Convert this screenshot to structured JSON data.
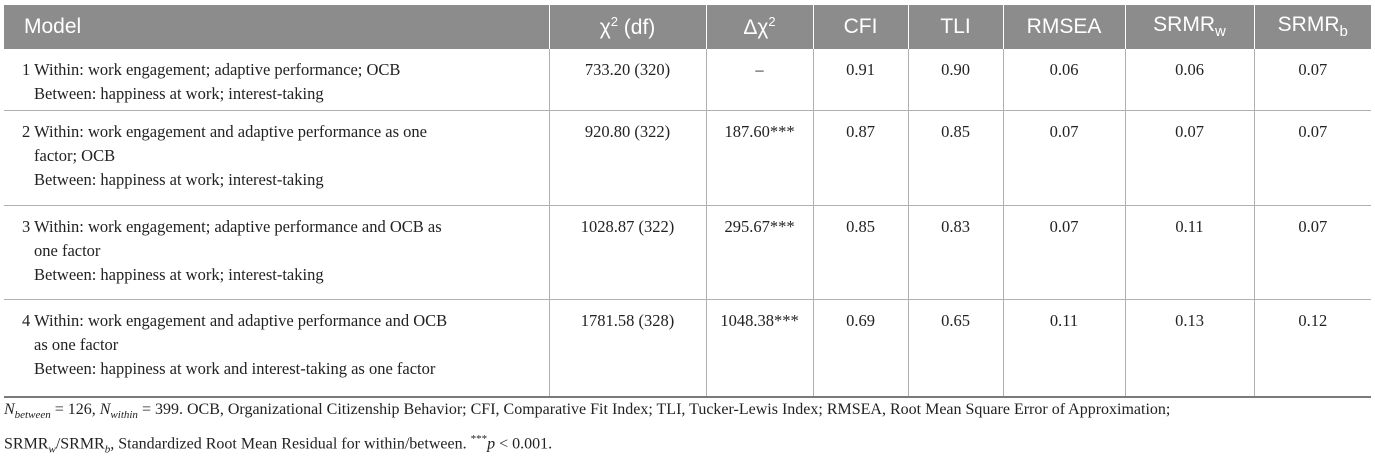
{
  "table": {
    "headers": {
      "model": "Model",
      "chi2_symbol": "χ",
      "chi2_sup": "2",
      "chi2_rest": " (df)",
      "dchi2_symbol": "Δχ",
      "dchi2_sup": "2",
      "cfi": "CFI",
      "tli": "TLI",
      "rmsea": "RMSEA",
      "srmrw_base": "SRMR",
      "srmrw_sub": "w",
      "srmrb_base": "SRMR",
      "srmrb_sub": "b"
    },
    "rows": [
      {
        "model_line1": "1 Within: work engagement; adaptive performance; OCB",
        "model_line2": "",
        "model_line3": "Between: happiness at work; interest-taking",
        "chi2": "733.20 (320)",
        "dchi2": "–",
        "cfi": "0.91",
        "tli": "0.90",
        "rmsea": "0.06",
        "srmrw": "0.06",
        "srmrb": "0.07"
      },
      {
        "model_line1": "2 Within: work engagement and adaptive performance as one",
        "model_line2": "factor; OCB",
        "model_line3": "Between: happiness at work; interest-taking",
        "chi2": "920.80 (322)",
        "dchi2": "187.60***",
        "cfi": "0.87",
        "tli": "0.85",
        "rmsea": "0.07",
        "srmrw": "0.07",
        "srmrb": "0.07"
      },
      {
        "model_line1": "3 Within: work engagement; adaptive performance and OCB as",
        "model_line2": "one factor",
        "model_line3": "Between: happiness at work; interest-taking",
        "chi2": "1028.87 (322)",
        "dchi2": "295.67***",
        "cfi": "0.85",
        "tli": "0.83",
        "rmsea": "0.07",
        "srmrw": "0.11",
        "srmrb": "0.07"
      },
      {
        "model_line1": "4 Within: work engagement and adaptive performance and OCB",
        "model_line2": "as one factor",
        "model_line3": "Between: happiness at work and interest-taking as one factor",
        "chi2": "1781.58 (328)",
        "dchi2": "1048.38***",
        "cfi": "0.69",
        "tli": "0.65",
        "rmsea": "0.11",
        "srmrw": "0.13",
        "srmrb": "0.12"
      }
    ]
  },
  "note": {
    "n_between_label": "N",
    "n_between_sub": "between",
    "n_between_value": " = 126, ",
    "n_within_label": "N",
    "n_within_sub": "within",
    "n_within_value": " = 399. OCB, Organizational Citizenship Behavior; CFI, Comparative Fit Index; TLI, Tucker-Lewis Index; RMSEA, Root Mean Square Error of Approximation;",
    "srmr1": "SRMR",
    "srmr1_sub": "w",
    "slash": "/SRMR",
    "srmr2_sub": "b",
    "line2_rest": ", Standardized Root Mean Residual for within/between. ",
    "stars": "***",
    "p": "p",
    "p_rest": " < 0.001."
  },
  "colors": {
    "header_bg": "#8c8c8c",
    "header_text": "#ffffff",
    "border": "#b0b0b0",
    "text": "#222222"
  }
}
